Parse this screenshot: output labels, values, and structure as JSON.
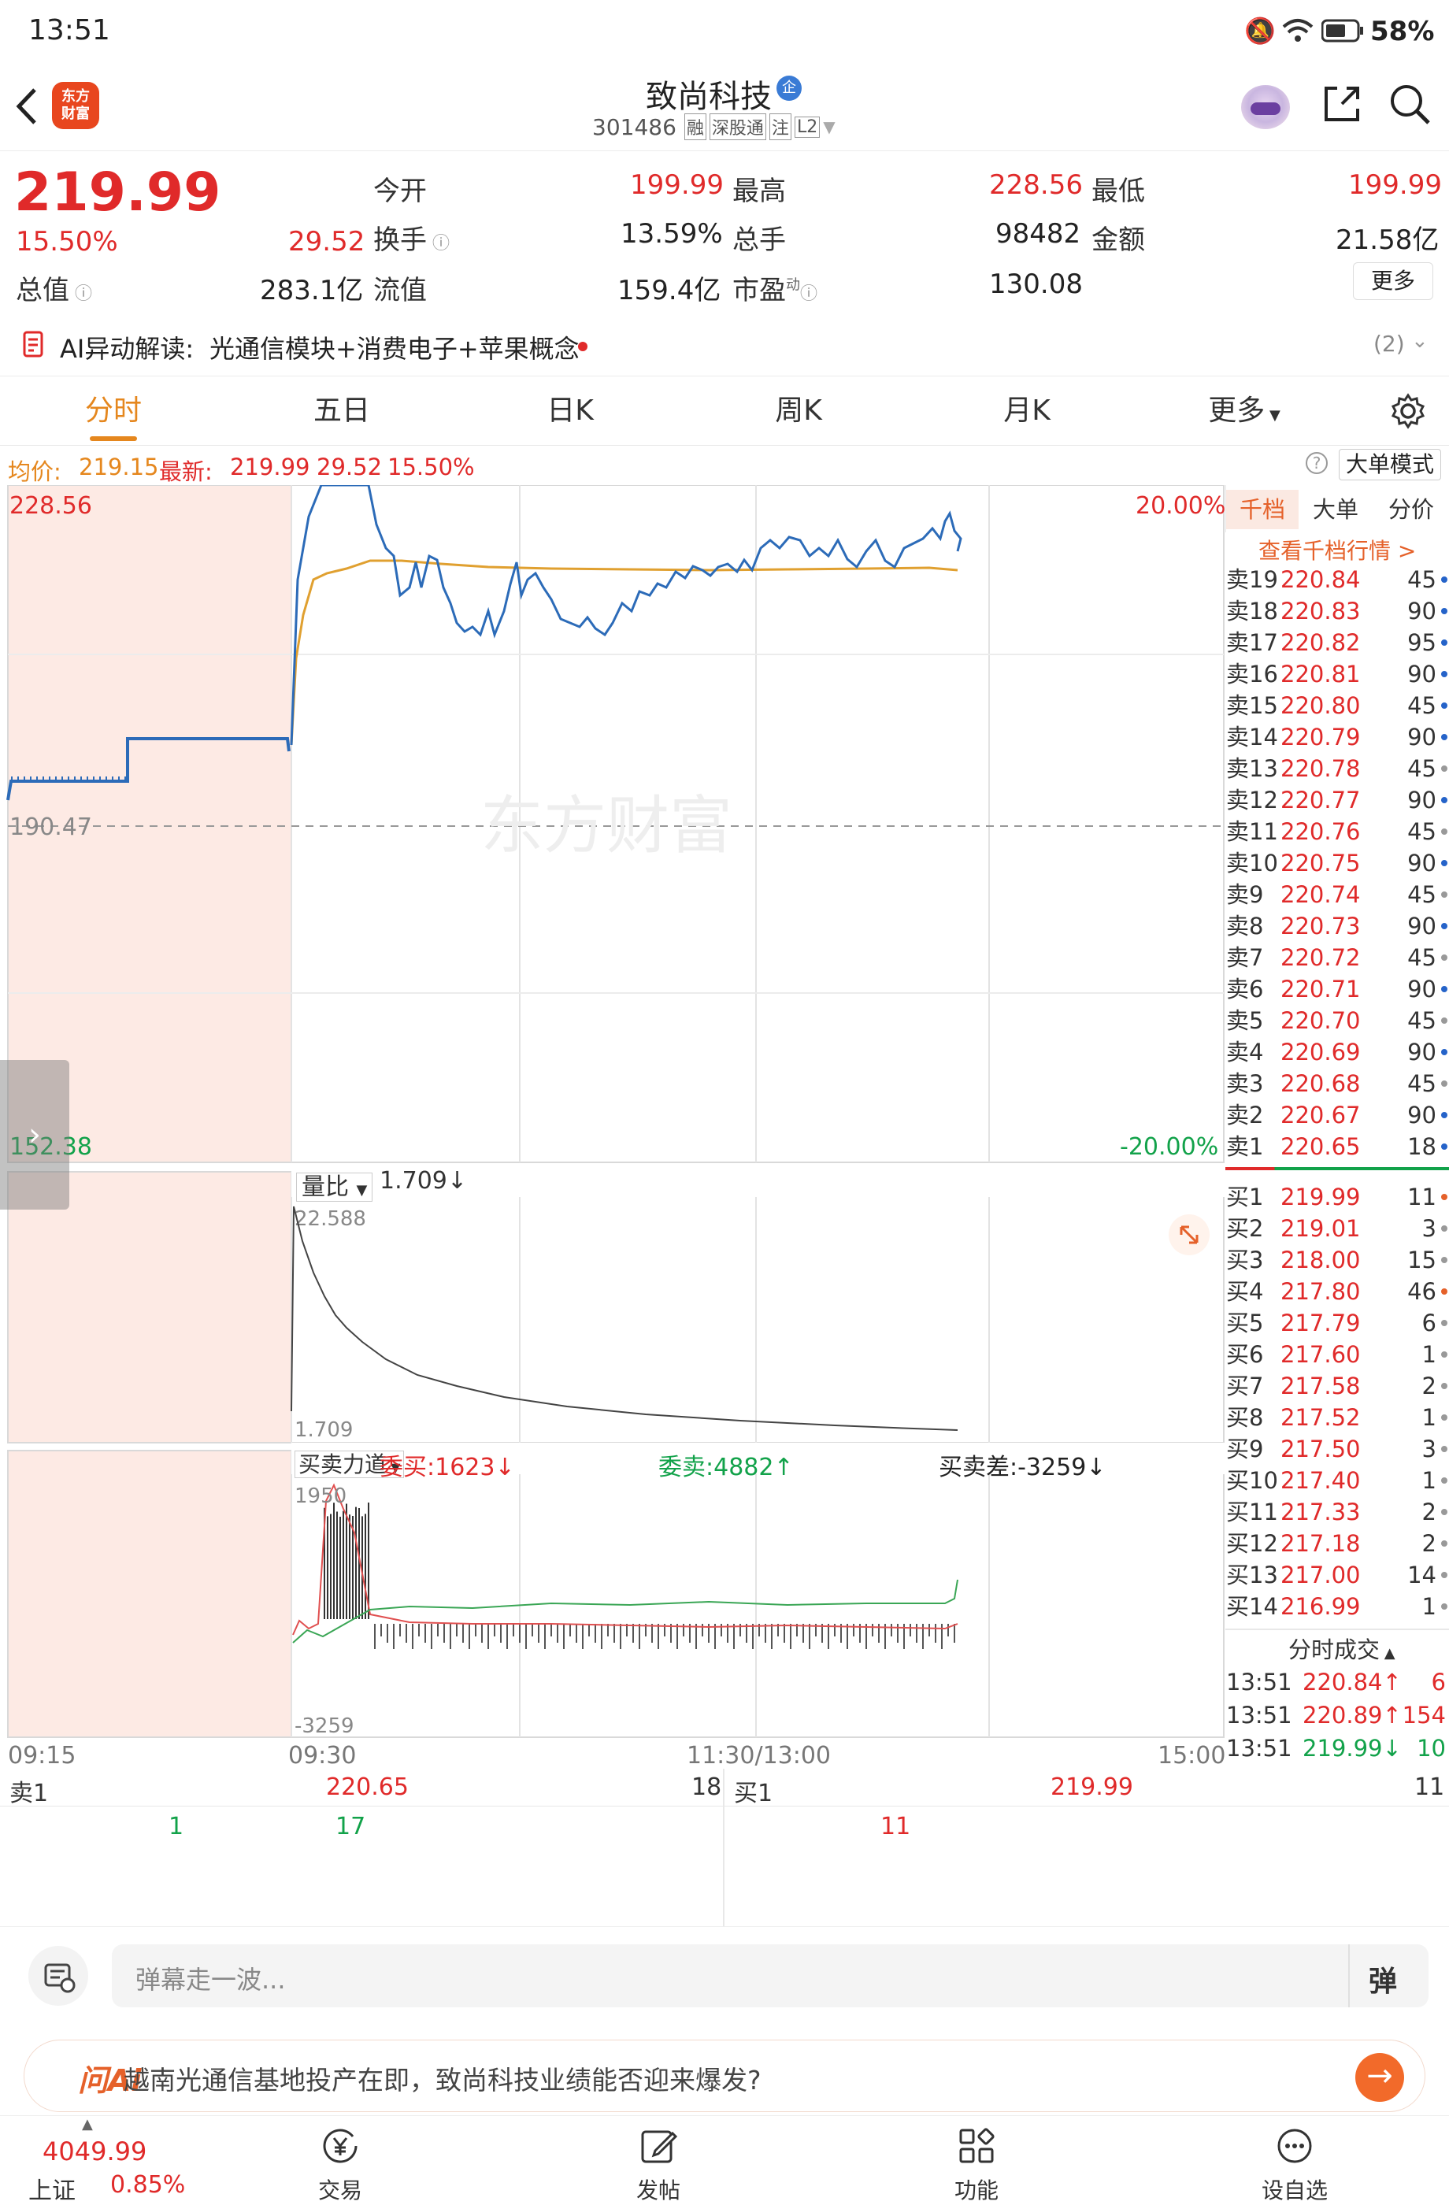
{
  "status": {
    "time": "13:51",
    "battery": "58%"
  },
  "header": {
    "brand": "东方\n财富",
    "stock_name": "致尚科技",
    "badge": "企",
    "code": "301486",
    "tags": [
      "融",
      "深股通",
      "注",
      "L2"
    ]
  },
  "quote": {
    "price": "219.99",
    "change_pct": "15.50%",
    "change_amt": "29.52",
    "labels": {
      "open": "今开",
      "high": "最高",
      "low": "最低",
      "turnover": "换手",
      "volume": "总手",
      "amount": "金额",
      "mktcap": "总值",
      "float": "流值",
      "pe": "市盈"
    },
    "open": "199.99",
    "high": "228.56",
    "low": "199.99",
    "turnover": "13.59%",
    "volume": "98482",
    "amount": "21.58亿",
    "mktcap": "283.1亿",
    "float": "159.4亿",
    "pe": "130.08",
    "pe_sup": "动",
    "more": "更多"
  },
  "ai": {
    "label": "AI异动解读:",
    "text": "光通信模块+消费电子+苹果概念",
    "count": "(2)"
  },
  "tabs": [
    "分时",
    "五日",
    "日K",
    "周K",
    "月K",
    "更多"
  ],
  "info": {
    "avg_label": "均价:",
    "avg": "219.15",
    "latest_label": "最新:",
    "latest": "219.99",
    "chg": "29.52",
    "pct": "15.50%",
    "mode": "大单模式"
  },
  "chart": {
    "high_label": "228.56",
    "low_label": "152.38",
    "base_label": "190.47",
    "up_pct": "20.00%",
    "down_pct": "-20.00%",
    "watermark": "东方财富",
    "vol_ratio_label": "量比",
    "vol_ratio": "1.709↓",
    "vol_top": "22.588",
    "vol_bottom": "1.709",
    "force_label": "买卖力道",
    "bid_label": "委买:1623↓",
    "ask_label": "委卖:4882↑",
    "diff_label": "买卖差:-3259↓",
    "force_top": "1950",
    "force_bottom": "-3259",
    "times": [
      "09:15",
      "09:30",
      "11:30/13:00",
      "15:00"
    ]
  },
  "book": {
    "tabs": [
      "千档",
      "大单",
      "分价"
    ],
    "link": "查看千档行情 >",
    "asks": [
      {
        "label": "卖19",
        "price": "220.84",
        "vol": "45",
        "dot": "#2563c9"
      },
      {
        "label": "卖18",
        "price": "220.83",
        "vol": "90",
        "dot": "#2563c9"
      },
      {
        "label": "卖17",
        "price": "220.82",
        "vol": "95",
        "dot": "#2563c9"
      },
      {
        "label": "卖16",
        "price": "220.81",
        "vol": "90",
        "dot": "#2563c9"
      },
      {
        "label": "卖15",
        "price": "220.80",
        "vol": "45",
        "dot": "#2563c9"
      },
      {
        "label": "卖14",
        "price": "220.79",
        "vol": "90",
        "dot": "#2563c9"
      },
      {
        "label": "卖13",
        "price": "220.78",
        "vol": "45",
        "dot": "#999999"
      },
      {
        "label": "卖12",
        "price": "220.77",
        "vol": "90",
        "dot": "#2563c9"
      },
      {
        "label": "卖11",
        "price": "220.76",
        "vol": "45",
        "dot": "#999999"
      },
      {
        "label": "卖10",
        "price": "220.75",
        "vol": "90",
        "dot": "#2563c9"
      },
      {
        "label": "卖9",
        "price": "220.74",
        "vol": "45",
        "dot": "#999999"
      },
      {
        "label": "卖8",
        "price": "220.73",
        "vol": "90",
        "dot": "#2563c9"
      },
      {
        "label": "卖7",
        "price": "220.72",
        "vol": "45",
        "dot": "#999999"
      },
      {
        "label": "卖6",
        "price": "220.71",
        "vol": "90",
        "dot": "#2563c9"
      },
      {
        "label": "卖5",
        "price": "220.70",
        "vol": "45",
        "dot": "#999999"
      },
      {
        "label": "卖4",
        "price": "220.69",
        "vol": "90",
        "dot": "#2563c9"
      },
      {
        "label": "卖3",
        "price": "220.68",
        "vol": "45",
        "dot": "#999999"
      },
      {
        "label": "卖2",
        "price": "220.67",
        "vol": "90",
        "dot": "#2563c9"
      },
      {
        "label": "卖1",
        "price": "220.65",
        "vol": "18",
        "dot": "#2563c9"
      }
    ],
    "bids": [
      {
        "label": "买1",
        "price": "219.99",
        "vol": "11",
        "dot": "#e5612a"
      },
      {
        "label": "买2",
        "price": "219.01",
        "vol": "3",
        "dot": "#999999"
      },
      {
        "label": "买3",
        "price": "218.00",
        "vol": "15",
        "dot": "#999999"
      },
      {
        "label": "买4",
        "price": "217.80",
        "vol": "46",
        "dot": "#e5612a"
      },
      {
        "label": "买5",
        "price": "217.79",
        "vol": "6",
        "dot": "#999999"
      },
      {
        "label": "买6",
        "price": "217.60",
        "vol": "1",
        "dot": "#999999"
      },
      {
        "label": "买7",
        "price": "217.58",
        "vol": "2",
        "dot": "#999999"
      },
      {
        "label": "买8",
        "price": "217.52",
        "vol": "1",
        "dot": "#999999"
      },
      {
        "label": "买9",
        "price": "217.50",
        "vol": "3",
        "dot": "#999999"
      },
      {
        "label": "买10",
        "price": "217.40",
        "vol": "1",
        "dot": "#999999"
      },
      {
        "label": "买11",
        "price": "217.33",
        "vol": "2",
        "dot": "#999999"
      },
      {
        "label": "买12",
        "price": "217.18",
        "vol": "2",
        "dot": "#999999"
      },
      {
        "label": "买13",
        "price": "217.00",
        "vol": "14",
        "dot": "#999999"
      },
      {
        "label": "买14",
        "price": "216.99",
        "vol": "1",
        "dot": "#999999"
      }
    ],
    "trades_title": "分时成交",
    "trades": [
      {
        "time": "13:51",
        "price": "220.84↑",
        "vol": "6",
        "color": "#e02a2a"
      },
      {
        "time": "13:51",
        "price": "220.89↑",
        "vol": "154",
        "color": "#e02a2a"
      },
      {
        "time": "13:51",
        "price": "219.99↓",
        "vol": "10",
        "color": "#12a24a"
      }
    ]
  },
  "bottom": {
    "ask_label": "卖1",
    "ask_price": "220.65",
    "ask_vol": "18",
    "bid_label": "买1",
    "bid_price": "219.99",
    "bid_vol": "11",
    "ask_q1": "1",
    "ask_q2": "17",
    "bid_q1": "11"
  },
  "input": {
    "placeholder": "弹幕走一波...",
    "danmu": "弹"
  },
  "askai": {
    "logo": "问Ai",
    "text": "越南光通信基地投产在即，致尚科技业绩能否迎来爆发?"
  },
  "nav": {
    "index_value": "4049.99",
    "index_name": "上证",
    "index_pct": "0.85%",
    "items": [
      "交易",
      "发帖",
      "功能",
      "设自选"
    ]
  }
}
